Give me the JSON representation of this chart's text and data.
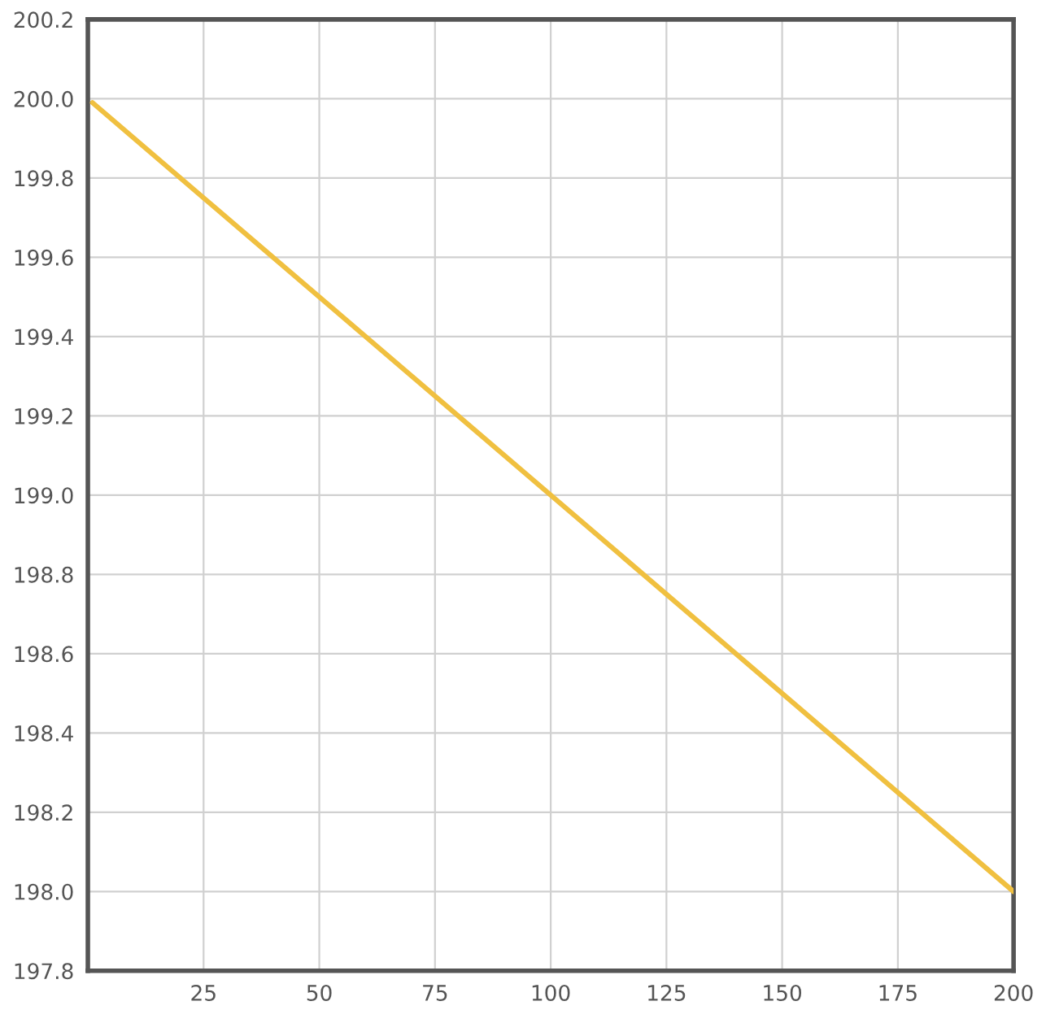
{
  "chart_data": {
    "type": "line",
    "x": [
      1,
      200
    ],
    "series": [
      {
        "color": "#f0c040",
        "values": [
          199.99,
          198.0
        ]
      }
    ],
    "xlim": [
      0,
      200
    ],
    "xticks": [
      25,
      50,
      75,
      100,
      125,
      150,
      175,
      200
    ],
    "ylim": [
      197.8,
      200.2
    ],
    "yticks": [
      {
        "value": 197.8,
        "label": "197.8"
      },
      {
        "value": 198.0,
        "label": "198.0"
      },
      {
        "value": 198.2,
        "label": "198.2"
      },
      {
        "value": 198.4,
        "label": "198.4"
      },
      {
        "value": 198.6,
        "label": "198.6"
      },
      {
        "value": 198.8,
        "label": "198.8"
      },
      {
        "value": 199.0,
        "label": "199.0"
      },
      {
        "value": 199.2,
        "label": "199.2"
      },
      {
        "value": 199.4,
        "label": "199.4"
      },
      {
        "value": 199.6,
        "label": "199.6"
      },
      {
        "value": 199.8,
        "label": "199.8"
      },
      {
        "value": 200.0,
        "label": "200.0"
      },
      {
        "value": 200.2,
        "label": "200.2"
      }
    ],
    "grid": true,
    "marker": "none",
    "line_style": "solid"
  }
}
